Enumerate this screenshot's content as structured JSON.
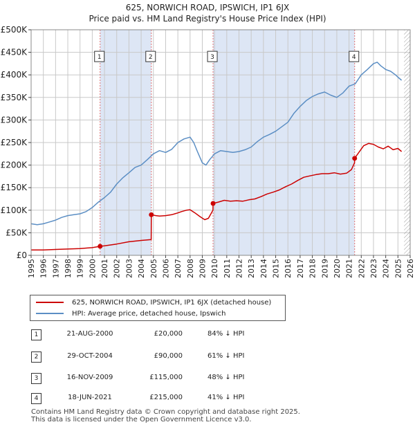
{
  "title_line1": "625, NORWICH ROAD, IPSWICH, IP1 6JX",
  "title_line2": "Price paid vs. HM Land Registry's House Price Index (HPI)",
  "colors": {
    "price": "#cc0000",
    "hpi": "#5b8ec4",
    "band": "#dde6f5",
    "grid": "#c8c8c8",
    "marker_line": "#e07070"
  },
  "chart_data": {
    "type": "line",
    "xlim": [
      1995,
      2026
    ],
    "ylim": [
      0,
      500000
    ],
    "y_ticks": [
      0,
      50000,
      100000,
      150000,
      200000,
      250000,
      300000,
      350000,
      400000,
      450000,
      500000
    ],
    "y_tick_labels": [
      "£0",
      "£50K",
      "£100K",
      "£150K",
      "£200K",
      "£250K",
      "£300K",
      "£350K",
      "£400K",
      "£450K",
      "£500K"
    ],
    "x_ticks": [
      1995,
      1996,
      1997,
      1998,
      1999,
      2000,
      2001,
      2002,
      2003,
      2004,
      2005,
      2006,
      2007,
      2008,
      2009,
      2010,
      2011,
      2012,
      2013,
      2014,
      2015,
      2016,
      2017,
      2018,
      2019,
      2020,
      2021,
      2022,
      2023,
      2024,
      2025,
      2026
    ],
    "shaded_bands": [
      [
        2000.64,
        2004.83
      ],
      [
        2009.88,
        2021.46
      ]
    ],
    "hatch_from": 2025.5,
    "series": [
      {
        "name": "625, NORWICH ROAD, IPSWICH, IP1 6JX (detached house)",
        "color": "#cc0000",
        "x": [
          1995.0,
          1996.0,
          1997.0,
          1998.0,
          1999.0,
          2000.0,
          2000.64,
          2001.0,
          2002.0,
          2003.0,
          2004.0,
          2004.82,
          2004.83,
          2005.2,
          2005.5,
          2006.0,
          2006.5,
          2007.0,
          2007.3,
          2007.7,
          2008.0,
          2008.4,
          2008.8,
          2009.2,
          2009.5,
          2009.87,
          2009.88,
          2010.3,
          2010.8,
          2011.3,
          2011.8,
          2012.3,
          2012.8,
          2013.3,
          2013.8,
          2014.3,
          2014.8,
          2015.3,
          2015.8,
          2016.3,
          2016.8,
          2017.3,
          2017.8,
          2018.3,
          2018.8,
          2019.3,
          2019.8,
          2020.3,
          2020.8,
          2021.2,
          2021.45,
          2021.46,
          2021.8,
          2022.2,
          2022.6,
          2023.0,
          2023.4,
          2023.8,
          2024.2,
          2024.6,
          2025.0,
          2025.3
        ],
        "y": [
          12000,
          12000,
          13000,
          14000,
          15000,
          17000,
          20000,
          21000,
          25000,
          30000,
          33000,
          35000,
          90000,
          88000,
          87000,
          88000,
          90000,
          94000,
          97000,
          100000,
          101000,
          94000,
          86000,
          79000,
          82000,
          100000,
          115000,
          118000,
          122000,
          120000,
          121000,
          120000,
          123000,
          125000,
          130000,
          136000,
          140000,
          145000,
          152000,
          158000,
          166000,
          173000,
          176000,
          179000,
          181000,
          181000,
          183000,
          180000,
          182000,
          190000,
          205000,
          215000,
          228000,
          243000,
          248000,
          246000,
          240000,
          236000,
          242000,
          234000,
          237000,
          230000
        ]
      },
      {
        "name": "HPI: Average price, detached house, Ipswich",
        "color": "#5b8ec4",
        "x": [
          1995.0,
          1995.5,
          1996.0,
          1996.5,
          1997.0,
          1997.5,
          1998.0,
          1998.5,
          1999.0,
          1999.5,
          2000.0,
          2000.5,
          2001.0,
          2001.5,
          2002.0,
          2002.5,
          2003.0,
          2003.5,
          2004.0,
          2004.5,
          2005.0,
          2005.5,
          2006.0,
          2006.5,
          2007.0,
          2007.5,
          2008.0,
          2008.3,
          2008.6,
          2009.0,
          2009.3,
          2009.6,
          2010.0,
          2010.5,
          2011.0,
          2011.5,
          2012.0,
          2012.5,
          2013.0,
          2013.5,
          2014.0,
          2014.5,
          2015.0,
          2015.5,
          2016.0,
          2016.5,
          2017.0,
          2017.5,
          2018.0,
          2018.5,
          2019.0,
          2019.5,
          2020.0,
          2020.5,
          2021.0,
          2021.5,
          2022.0,
          2022.5,
          2023.0,
          2023.3,
          2023.6,
          2024.0,
          2024.4,
          2024.8,
          2025.0,
          2025.3
        ],
        "y": [
          70000,
          68000,
          70000,
          74000,
          78000,
          84000,
          88000,
          90000,
          92000,
          97000,
          106000,
          118000,
          128000,
          140000,
          158000,
          172000,
          183000,
          195000,
          200000,
          212000,
          225000,
          232000,
          228000,
          235000,
          250000,
          258000,
          262000,
          250000,
          230000,
          205000,
          200000,
          212000,
          225000,
          232000,
          230000,
          228000,
          230000,
          234000,
          240000,
          252000,
          262000,
          268000,
          275000,
          285000,
          295000,
          315000,
          330000,
          343000,
          352000,
          358000,
          362000,
          355000,
          350000,
          360000,
          375000,
          380000,
          400000,
          412000,
          425000,
          428000,
          420000,
          412000,
          408000,
          400000,
          395000,
          388000
        ]
      }
    ],
    "markers": [
      {
        "label": "1",
        "x": 2000.64,
        "y": 20000
      },
      {
        "label": "2",
        "x": 2004.83,
        "y": 90000
      },
      {
        "label": "3",
        "x": 2009.88,
        "y": 115000
      },
      {
        "label": "4",
        "x": 2021.46,
        "y": 215000
      }
    ],
    "marker_box_y": 440000
  },
  "legend": {
    "price_label": "625, NORWICH ROAD, IPSWICH, IP1 6JX (detached house)",
    "hpi_label": "HPI: Average price, detached house, Ipswich"
  },
  "transactions": [
    {
      "num": "1",
      "date": "21-AUG-2000",
      "price": "£20,000",
      "delta": "84% ↓ HPI"
    },
    {
      "num": "2",
      "date": "29-OCT-2004",
      "price": "£90,000",
      "delta": "61% ↓ HPI"
    },
    {
      "num": "3",
      "date": "16-NOV-2009",
      "price": "£115,000",
      "delta": "48% ↓ HPI"
    },
    {
      "num": "4",
      "date": "18-JUN-2021",
      "price": "£215,000",
      "delta": "41% ↓ HPI"
    }
  ],
  "footer_line1": "Contains HM Land Registry data © Crown copyright and database right 2025.",
  "footer_line2": "This data is licensed under the Open Government Licence v3.0."
}
